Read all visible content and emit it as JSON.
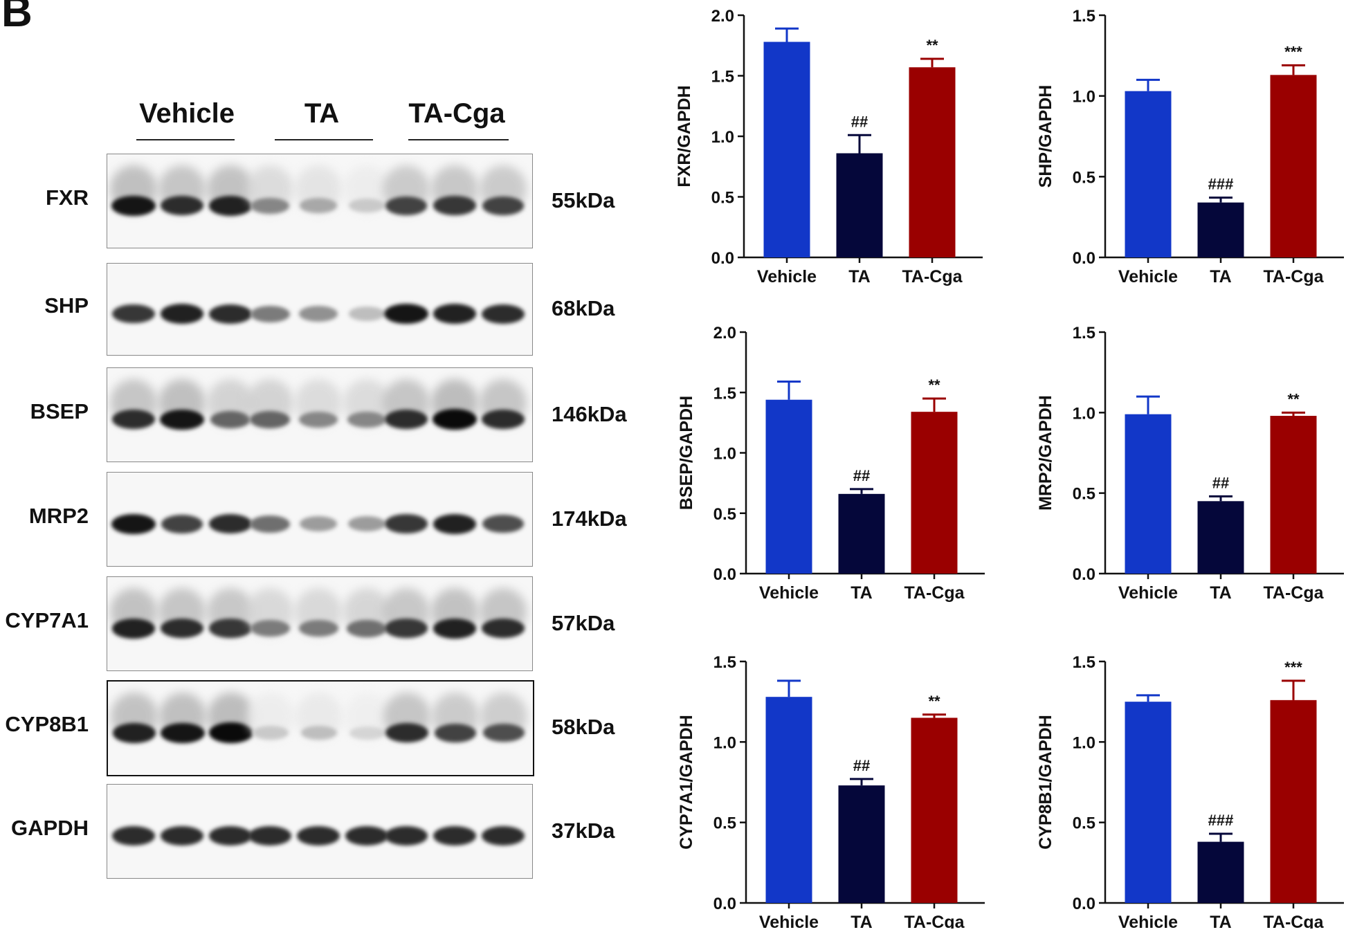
{
  "panel_letter": "B",
  "blot": {
    "groups": [
      "Vehicle",
      "TA",
      "TA-Cga"
    ],
    "rows": [
      {
        "protein": "FXR",
        "mw": "55kDa",
        "intensities": [
          0.95,
          0.85,
          0.9,
          0.45,
          0.3,
          0.15,
          0.75,
          0.8,
          0.75
        ],
        "smear": true
      },
      {
        "protein": "SHP",
        "mw": "68kDa",
        "intensities": [
          0.8,
          0.9,
          0.85,
          0.5,
          0.4,
          0.2,
          0.95,
          0.9,
          0.85
        ],
        "smear": false
      },
      {
        "protein": "BSEP",
        "mw": "146kDa",
        "intensities": [
          0.85,
          0.95,
          0.6,
          0.6,
          0.45,
          0.45,
          0.85,
          1.0,
          0.85
        ],
        "smear": true
      },
      {
        "protein": "MRP2",
        "mw": "174kDa",
        "intensities": [
          0.95,
          0.75,
          0.85,
          0.55,
          0.35,
          0.35,
          0.8,
          0.9,
          0.7
        ],
        "smear": false
      },
      {
        "protein": "CYP7A1",
        "mw": "57kDa",
        "intensities": [
          0.9,
          0.85,
          0.8,
          0.5,
          0.5,
          0.55,
          0.8,
          0.9,
          0.85
        ],
        "smear": true
      },
      {
        "protein": "CYP8B1",
        "mw": "58kDa",
        "intensities": [
          0.9,
          0.95,
          1.0,
          0.15,
          0.2,
          0.1,
          0.85,
          0.75,
          0.7
        ],
        "smear": true,
        "dark_border": true
      },
      {
        "protein": "GAPDH",
        "mw": "37kDa",
        "intensities": [
          0.85,
          0.85,
          0.85,
          0.85,
          0.85,
          0.85,
          0.85,
          0.85,
          0.85
        ],
        "smear": false
      }
    ]
  },
  "colors": {
    "Vehicle": "#1237c8",
    "TA": "#05073a",
    "TA-Cga": "#9a0000"
  },
  "chart_data": [
    {
      "type": "bar",
      "ylabel": "FXR/GAPDH",
      "ylim": [
        0,
        2.0
      ],
      "yticks": [
        "0.0",
        "0.5",
        "1.0",
        "1.5",
        "2.0"
      ],
      "categories": [
        "Vehicle",
        "TA",
        "TA-Cga"
      ],
      "values": [
        1.78,
        0.86,
        1.57
      ],
      "errors": [
        0.11,
        0.15,
        0.07
      ],
      "annotations": [
        "",
        "##",
        "**"
      ]
    },
    {
      "type": "bar",
      "ylabel": "SHP/GAPDH",
      "ylim": [
        0,
        1.5
      ],
      "yticks": [
        "0.0",
        "0.5",
        "1.0",
        "1.5"
      ],
      "categories": [
        "Vehicle",
        "TA",
        "TA-Cga"
      ],
      "values": [
        1.03,
        0.34,
        1.13
      ],
      "errors": [
        0.07,
        0.03,
        0.06
      ],
      "annotations": [
        "",
        "###",
        "***"
      ]
    },
    {
      "type": "bar",
      "ylabel": "BSEP/GAPDH",
      "ylim": [
        0,
        2.0
      ],
      "yticks": [
        "0.0",
        "0.5",
        "1.0",
        "1.5",
        "2.0"
      ],
      "categories": [
        "Vehicle",
        "TA",
        "TA-Cga"
      ],
      "values": [
        1.44,
        0.66,
        1.34
      ],
      "errors": [
        0.15,
        0.04,
        0.11
      ],
      "annotations": [
        "",
        "##",
        "**"
      ]
    },
    {
      "type": "bar",
      "ylabel": "MRP2/GAPDH",
      "ylim": [
        0,
        1.5
      ],
      "yticks": [
        "0.0",
        "0.5",
        "1.0",
        "1.5"
      ],
      "categories": [
        "Vehicle",
        "TA",
        "TA-Cga"
      ],
      "values": [
        0.99,
        0.45,
        0.98
      ],
      "errors": [
        0.11,
        0.03,
        0.02
      ],
      "annotations": [
        "",
        "##",
        "**"
      ]
    },
    {
      "type": "bar",
      "ylabel": "CYP7A1/GAPDH",
      "ylim": [
        0,
        1.5
      ],
      "yticks": [
        "0.0",
        "0.5",
        "1.0",
        "1.5"
      ],
      "categories": [
        "Vehicle",
        "TA",
        "TA-Cga"
      ],
      "values": [
        1.28,
        0.73,
        1.15
      ],
      "errors": [
        0.1,
        0.04,
        0.02
      ],
      "annotations": [
        "",
        "##",
        "**"
      ]
    },
    {
      "type": "bar",
      "ylabel": "CYP8B1/GAPDH",
      "ylim": [
        0,
        1.5
      ],
      "yticks": [
        "0.0",
        "0.5",
        "1.0",
        "1.5"
      ],
      "categories": [
        "Vehicle",
        "TA",
        "TA-Cga"
      ],
      "values": [
        1.25,
        0.38,
        1.26
      ],
      "errors": [
        0.04,
        0.05,
        0.12
      ],
      "annotations": [
        "",
        "###",
        "***"
      ]
    }
  ]
}
